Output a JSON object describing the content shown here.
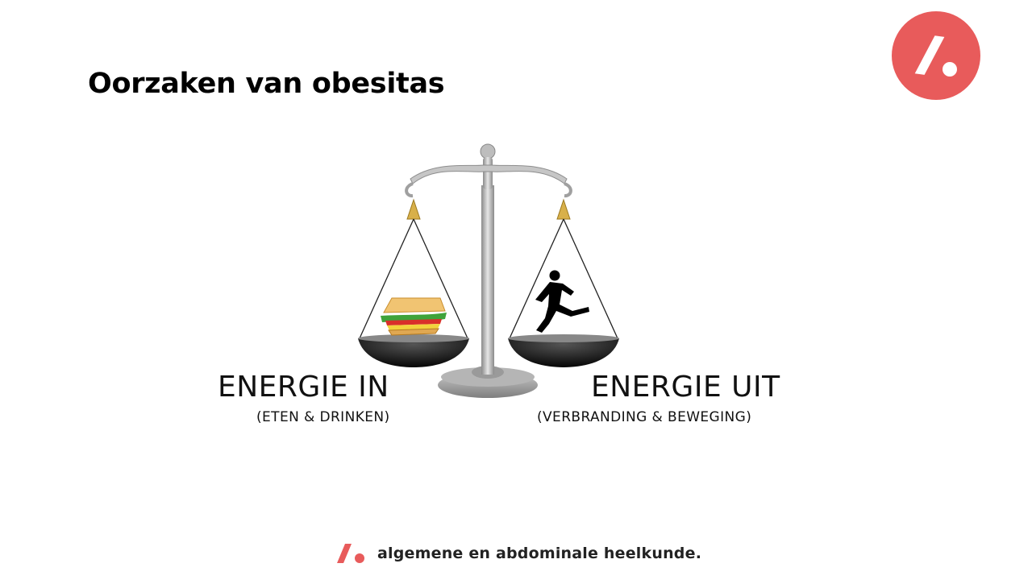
{
  "slide": {
    "title": "Oorzaken van obesitas"
  },
  "scale": {
    "left_pan": {
      "item_icon": "sandwich-icon",
      "label": "ENERGIE IN",
      "sublabel": "(ETEN & DRINKEN)"
    },
    "right_pan": {
      "item_icon": "runner-icon",
      "label": "ENERGIE UIT",
      "sublabel": "(VERBRANDING & BEWEGING)"
    }
  },
  "brand": {
    "name": "algemene en abdominale  heelkunde.",
    "accent": "#e85b5b"
  }
}
